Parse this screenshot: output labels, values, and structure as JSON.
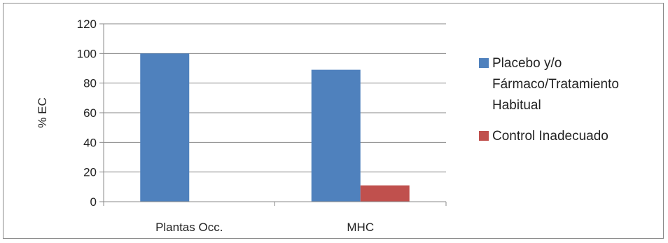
{
  "chart_data": {
    "type": "bar",
    "categories": [
      "Plantas Occ.",
      "MHC"
    ],
    "series": [
      {
        "name": "Placebo y/o Fármaco/Tratamiento Habitual",
        "values": [
          100,
          89
        ],
        "color": "#4f81bd"
      },
      {
        "name": "Control Inadecuado",
        "values": [
          0,
          11
        ],
        "color": "#c0504d"
      }
    ],
    "legend_lines": [
      [
        "Placebo y/o",
        "Fármaco/Tratamiento",
        "Habitual"
      ],
      [
        "Control Inadecuado"
      ]
    ],
    "ylabel": "% EC",
    "ylim": [
      0,
      120
    ],
    "yticks": [
      0,
      20,
      40,
      60,
      80,
      100,
      120
    ],
    "grid": true,
    "legend_position": "right"
  }
}
